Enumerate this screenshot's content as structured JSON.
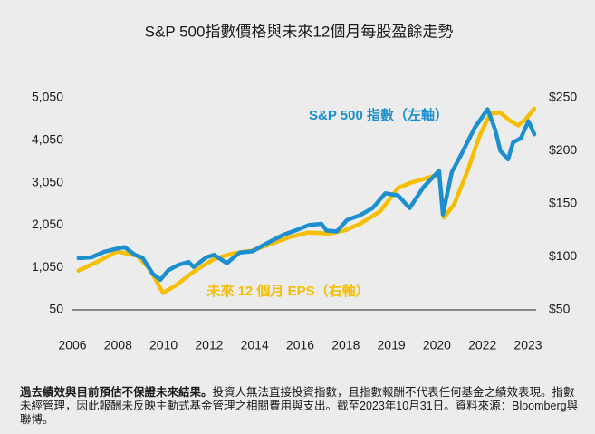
{
  "chart_data": {
    "type": "line",
    "title": "S&P 500指數價格與未來12個月每股盈餘走勢",
    "xlim": [
      2005.9,
      2023.9
    ],
    "xtick_labels": [
      "2006",
      "2008",
      "2010",
      "2012",
      "2014",
      "2016",
      "2018",
      "2019",
      "2020",
      "2022",
      "2023"
    ],
    "ylim": [
      50,
      5050
    ],
    "yticks": [
      50,
      {
        "value": 1050,
        "label": "1,050"
      },
      {
        "value": 2050,
        "label": "2,050"
      },
      {
        "value": 3050,
        "label": "3,050"
      },
      {
        "value": 4050,
        "label": "4,050"
      },
      {
        "value": 5050,
        "label": "5,050"
      }
    ],
    "y2lim": [
      50,
      250
    ],
    "y2ticks": [
      {
        "value": 50,
        "label": "$50"
      },
      {
        "value": 100,
        "label": "$100"
      },
      {
        "value": 150,
        "label": "$150"
      },
      {
        "value": 200,
        "label": "$200"
      },
      {
        "value": 250,
        "label": "$250"
      }
    ],
    "series": [
      {
        "name": "S&P 500 指數（左軸）",
        "color": "#1b8fcf",
        "axis": "y",
        "x": [
          2006.0,
          2006.5,
          2007.0,
          2007.4,
          2007.8,
          2008.2,
          2008.5,
          2008.9,
          2009.2,
          2009.5,
          2009.9,
          2010.3,
          2010.5,
          2011.0,
          2011.3,
          2011.8,
          2012.3,
          2012.8,
          2013.3,
          2014.0,
          2014.6,
          2015.0,
          2015.5,
          2015.7,
          2016.1,
          2016.5,
          2017.0,
          2017.5,
          2018.0,
          2018.5,
          2018.95,
          2019.5,
          2020.1,
          2020.25,
          2020.6,
          2021.0,
          2021.5,
          2022.0,
          2022.3,
          2022.5,
          2022.8,
          2023.0,
          2023.3,
          2023.6,
          2023.83
        ],
        "values": [
          1270,
          1290,
          1420,
          1480,
          1530,
          1350,
          1280,
          900,
          760,
          980,
          1110,
          1180,
          1060,
          1290,
          1350,
          1150,
          1400,
          1430,
          1600,
          1820,
          1950,
          2050,
          2080,
          1920,
          1900,
          2170,
          2280,
          2450,
          2800,
          2750,
          2450,
          2950,
          3330,
          2300,
          3300,
          3750,
          4350,
          4780,
          4300,
          3800,
          3600,
          4000,
          4100,
          4500,
          4190
        ]
      },
      {
        "name": "未來 12 個月 EPS（右軸）",
        "color": "#f5bf00",
        "axis": "y2",
        "x": [
          2006.0,
          2006.7,
          2007.5,
          2008.3,
          2008.8,
          2009.3,
          2009.8,
          2010.5,
          2011.3,
          2012.0,
          2012.8,
          2013.5,
          2014.3,
          2015.0,
          2015.8,
          2016.4,
          2017.0,
          2017.8,
          2018.5,
          2019.0,
          2019.7,
          2020.1,
          2020.3,
          2020.7,
          2021.2,
          2021.7,
          2022.1,
          2022.5,
          2022.9,
          2023.2,
          2023.5,
          2023.83
        ],
        "values": [
          87,
          95,
          105,
          101,
          88,
          66,
          73,
          86,
          98,
          103,
          106,
          112,
          119,
          123,
          122,
          125,
          131,
          143,
          165,
          170,
          175,
          178,
          137,
          150,
          180,
          215,
          235,
          236,
          228,
          224,
          230,
          240
        ]
      }
    ],
    "annotations": [
      {
        "text": "S&P 500 指數（左軸）"
      },
      {
        "text": "未來 12 個月 EPS（右軸）"
      }
    ],
    "footnote": {
      "bold": "過去績效與目前預估不保證未來結果。",
      "text": "投資人無法直接投資指數，且指數報酬不代表任何基金之績效表現。指數未經管理，因此報酬未反映主動式基金管理之相關費用與支出。截至2023年10月31日。資料來源：Bloomberg與聯博。"
    }
  }
}
